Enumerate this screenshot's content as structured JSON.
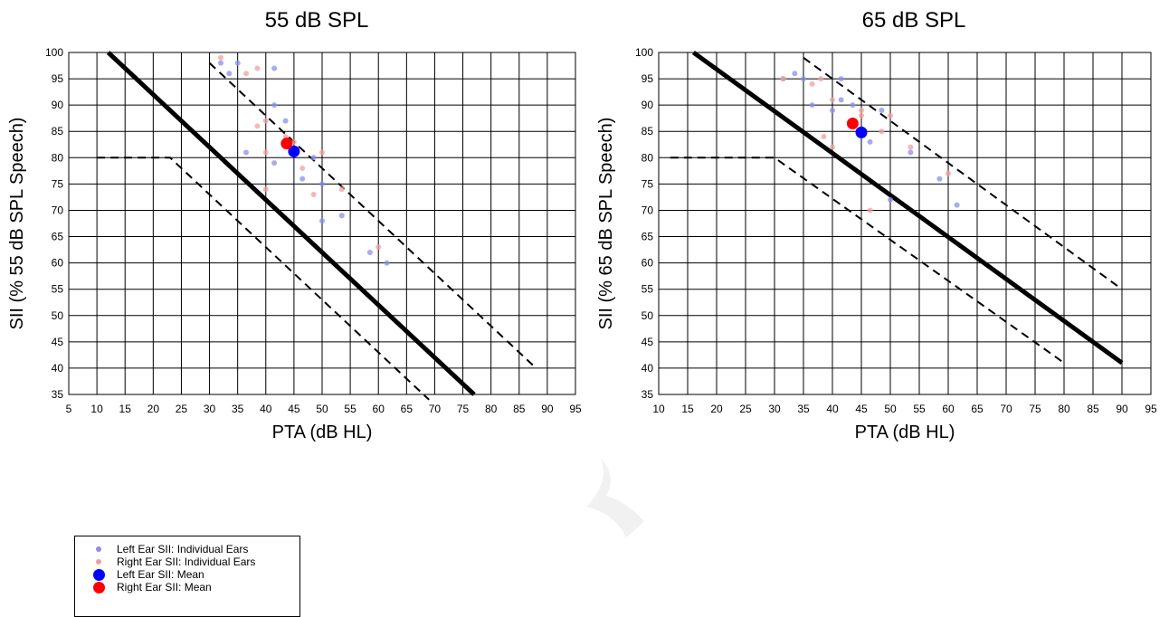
{
  "chart_data": [
    {
      "type": "scatter",
      "title": "55 dB SPL",
      "xlabel": "PTA (dB HL)",
      "ylabel": "SII (% 55 dB SPL Speech)",
      "xlim": [
        5,
        95
      ],
      "ylim": [
        35,
        100
      ],
      "xticks": [
        "5",
        "10",
        "15",
        "20",
        "25",
        "30",
        "35",
        "40",
        "45",
        "50",
        "55",
        "60",
        "65",
        "70",
        "75",
        "80",
        "85",
        "90",
        "95"
      ],
      "yticks": [
        "35",
        "40",
        "45",
        "50",
        "55",
        "60",
        "65",
        "70",
        "75",
        "80",
        "85",
        "90",
        "95",
        "100"
      ],
      "grid": true,
      "series": [
        {
          "name": "Left Ear SII: Individual Ears",
          "kind": "points",
          "color": "#8c8cf0",
          "x": [
            32,
            33.5,
            35,
            36.5,
            41.5,
            41.5,
            41.5,
            43.5,
            46.5,
            48.5,
            50,
            50,
            53.5,
            58.5,
            61.5
          ],
          "y": [
            98,
            96,
            98,
            81,
            97,
            90,
            79,
            87,
            76,
            80,
            75,
            68,
            69,
            62,
            60
          ]
        },
        {
          "name": "Right Ear SII: Individual Ears",
          "kind": "points",
          "color": "#f0a0a0",
          "x": [
            32,
            36.5,
            38.5,
            38.5,
            40,
            40,
            40,
            43.5,
            45,
            46.5,
            48.5,
            50,
            53.5,
            60
          ],
          "y": [
            99,
            96,
            97,
            86,
            87,
            81,
            74,
            84,
            83,
            78,
            73,
            81,
            74,
            63
          ]
        },
        {
          "name": "Left Ear SII: Mean",
          "kind": "points",
          "color": "#0000ff",
          "x": [
            45
          ],
          "y": [
            81.2
          ]
        },
        {
          "name": "Right Ear SII: Mean",
          "kind": "points",
          "color": "#ff0000",
          "x": [
            43.7
          ],
          "y": [
            82.7
          ]
        }
      ],
      "lines": [
        {
          "style": "solid-thick",
          "x": [
            12,
            77
          ],
          "y": [
            100,
            35
          ]
        },
        {
          "style": "dashed",
          "x": [
            30,
            88
          ],
          "y": [
            98,
            40
          ]
        },
        {
          "style": "dashed",
          "x": [
            10,
            23,
            69
          ],
          "y": [
            80,
            80,
            34
          ]
        }
      ]
    },
    {
      "type": "scatter",
      "title": "65 dB SPL",
      "xlabel": "PTA (dB HL)",
      "ylabel": "SII (% 65 dB SPL Speech)",
      "xlim": [
        10,
        95
      ],
      "ylim": [
        35,
        100
      ],
      "xticks": [
        "10",
        "15",
        "20",
        "25",
        "30",
        "35",
        "40",
        "45",
        "50",
        "55",
        "60",
        "65",
        "70",
        "75",
        "80",
        "85",
        "90",
        "95"
      ],
      "yticks": [
        "35",
        "40",
        "45",
        "50",
        "55",
        "60",
        "65",
        "70",
        "75",
        "80",
        "85",
        "90",
        "95",
        "100"
      ],
      "grid": true,
      "series": [
        {
          "name": "Left Ear SII: Individual Ears",
          "kind": "points",
          "color": "#8c8cf0",
          "x": [
            31.5,
            33.5,
            35,
            36.5,
            40,
            41.5,
            41.5,
            43.5,
            46.5,
            48.5,
            50,
            53.5,
            58.5,
            61.5
          ],
          "y": [
            95,
            96,
            95,
            90,
            89,
            95,
            91,
            90,
            83,
            89,
            72,
            81,
            76,
            71
          ]
        },
        {
          "name": "Right Ear SII: Individual Ears",
          "kind": "points",
          "color": "#f0a0a0",
          "x": [
            31.5,
            36.5,
            38,
            38.5,
            40,
            40,
            43.5,
            45,
            45,
            46.5,
            48.5,
            50,
            53.5,
            60
          ],
          "y": [
            95,
            94,
            95,
            84,
            91,
            82,
            87,
            88,
            89,
            70,
            85,
            88,
            82,
            77
          ]
        },
        {
          "name": "Left Ear SII: Mean",
          "kind": "points",
          "color": "#0000ff",
          "x": [
            45
          ],
          "y": [
            84.8
          ]
        },
        {
          "name": "Right Ear SII: Mean",
          "kind": "points",
          "color": "#ff0000",
          "x": [
            43.5
          ],
          "y": [
            86.5
          ]
        }
      ],
      "lines": [
        {
          "style": "solid-thick",
          "x": [
            16,
            90
          ],
          "y": [
            100,
            41
          ]
        },
        {
          "style": "dashed",
          "x": [
            35,
            90
          ],
          "y": [
            99,
            55
          ]
        },
        {
          "style": "dashed",
          "x": [
            12,
            30,
            80
          ],
          "y": [
            80,
            80,
            41
          ]
        }
      ]
    }
  ],
  "legend": {
    "placement": "bottom-left",
    "items": [
      {
        "label": "Left Ear SII: Individual Ears",
        "color": "#8c8cf0",
        "marker": "small"
      },
      {
        "label": "Right Ear SII: Individual Ears",
        "color": "#f0a0a0",
        "marker": "small"
      },
      {
        "label": "Left Ear SII: Mean",
        "color": "#0000ff",
        "marker": "big"
      },
      {
        "label": "Right Ear SII: Mean",
        "color": "#ff0000",
        "marker": "big"
      }
    ]
  }
}
